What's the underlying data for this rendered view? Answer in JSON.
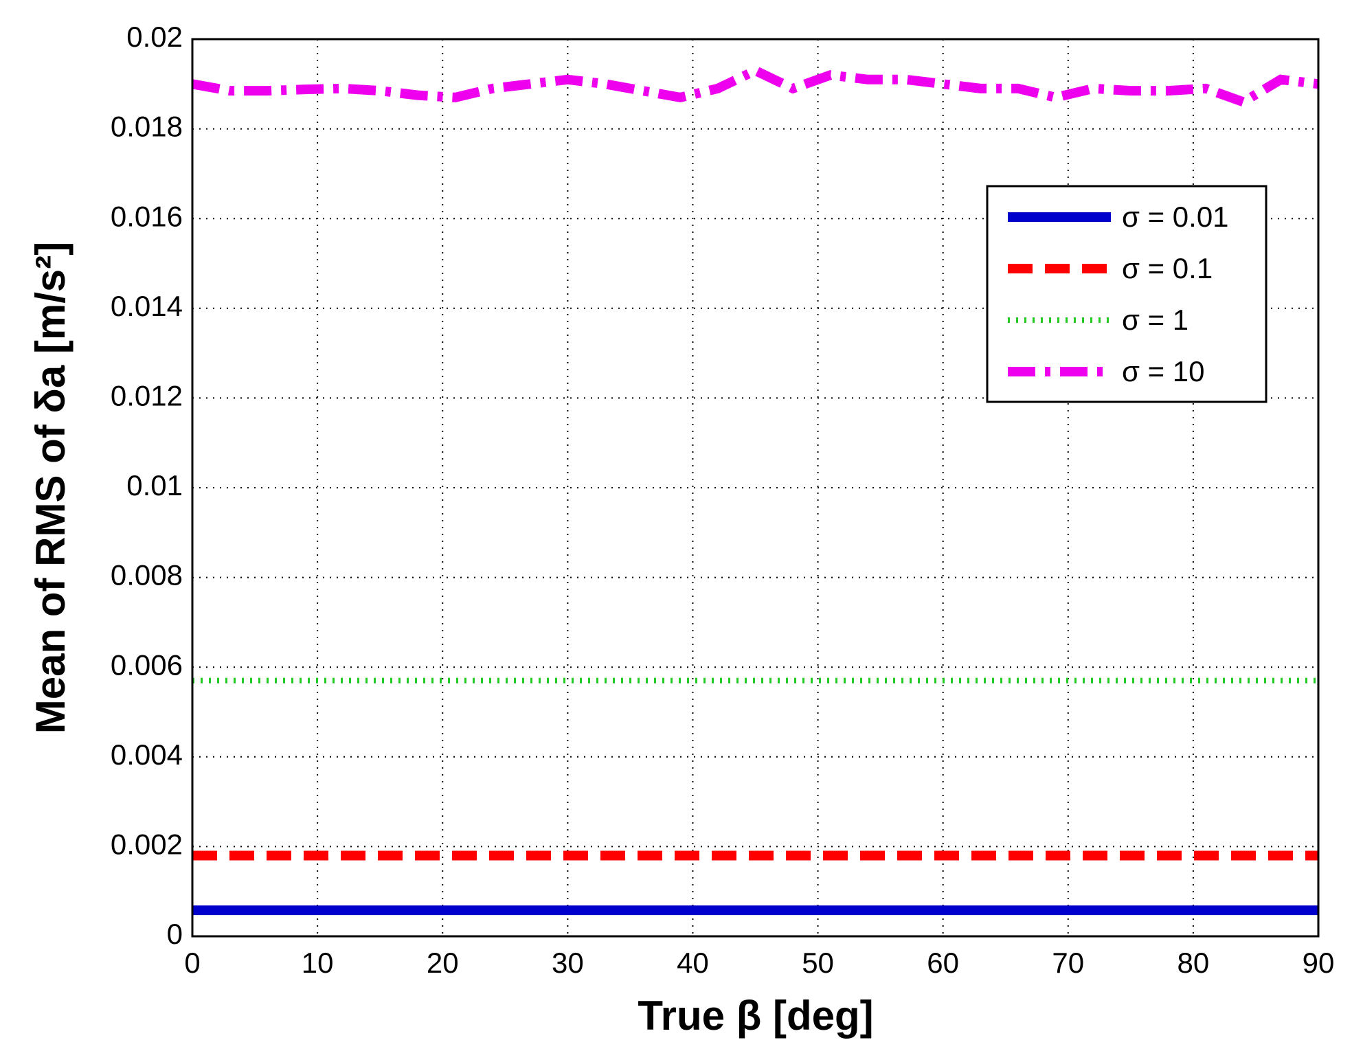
{
  "chart_data": {
    "type": "line",
    "xlabel": "True β [deg]",
    "ylabel": "Mean of RMS of δa [m/s²]",
    "x": [
      0,
      3,
      6,
      9,
      12,
      15,
      18,
      21,
      24,
      27,
      30,
      33,
      36,
      39,
      42,
      45,
      48,
      51,
      54,
      57,
      60,
      63,
      66,
      69,
      72,
      75,
      78,
      81,
      84,
      87,
      90
    ],
    "series": [
      {
        "name": "σ = 0.01",
        "color": "#0000cc",
        "linestyle": "solid",
        "values": [
          0.00058,
          0.00058,
          0.00058,
          0.00058,
          0.00058,
          0.00058,
          0.00058,
          0.00058,
          0.00058,
          0.00058,
          0.00058,
          0.00058,
          0.00058,
          0.00058,
          0.00058,
          0.00058,
          0.00058,
          0.00058,
          0.00058,
          0.00058,
          0.00058,
          0.00058,
          0.00058,
          0.00058,
          0.00058,
          0.00058,
          0.00058,
          0.00058,
          0.00058,
          0.00058,
          0.00058
        ]
      },
      {
        "name": "σ = 0.1",
        "color": "#ff0000",
        "linestyle": "dashed",
        "values": [
          0.0018,
          0.0018,
          0.0018,
          0.0018,
          0.0018,
          0.0018,
          0.0018,
          0.0018,
          0.0018,
          0.0018,
          0.0018,
          0.0018,
          0.0018,
          0.0018,
          0.0018,
          0.0018,
          0.0018,
          0.0018,
          0.0018,
          0.0018,
          0.0018,
          0.0018,
          0.0018,
          0.0018,
          0.0018,
          0.0018,
          0.0018,
          0.0018,
          0.0018,
          0.0018,
          0.0018
        ]
      },
      {
        "name": "σ = 1",
        "color": "#22cc22",
        "linestyle": "dotted",
        "values": [
          0.0057,
          0.0057,
          0.0057,
          0.0057,
          0.0057,
          0.0057,
          0.0057,
          0.0057,
          0.0057,
          0.0057,
          0.0057,
          0.0057,
          0.0057,
          0.0057,
          0.0057,
          0.0057,
          0.0057,
          0.0057,
          0.0057,
          0.0057,
          0.0057,
          0.0057,
          0.0057,
          0.0057,
          0.0057,
          0.0057,
          0.0057,
          0.0057,
          0.0057,
          0.0057,
          0.0057
        ]
      },
      {
        "name": "σ = 10",
        "color": "#ee00ee",
        "linestyle": "dashdot",
        "values": [
          0.019,
          0.01885,
          0.01885,
          0.01888,
          0.0189,
          0.01885,
          0.01875,
          0.0187,
          0.0189,
          0.019,
          0.0191,
          0.019,
          0.01885,
          0.0187,
          0.0189,
          0.0193,
          0.0189,
          0.0192,
          0.0191,
          0.0191,
          0.019,
          0.0189,
          0.0189,
          0.0187,
          0.0189,
          0.01885,
          0.01885,
          0.0189,
          0.0186,
          0.0191,
          0.019
        ]
      }
    ],
    "xlim": [
      0,
      90
    ],
    "xticks": [
      0,
      10,
      20,
      30,
      40,
      50,
      60,
      70,
      80,
      90
    ],
    "ylim": [
      0,
      0.02
    ],
    "yticks": [
      0,
      0.002,
      0.004,
      0.006,
      0.008,
      0.01,
      0.012,
      0.014,
      0.016,
      0.018,
      0.02
    ],
    "grid": true,
    "legend": "upper right"
  }
}
